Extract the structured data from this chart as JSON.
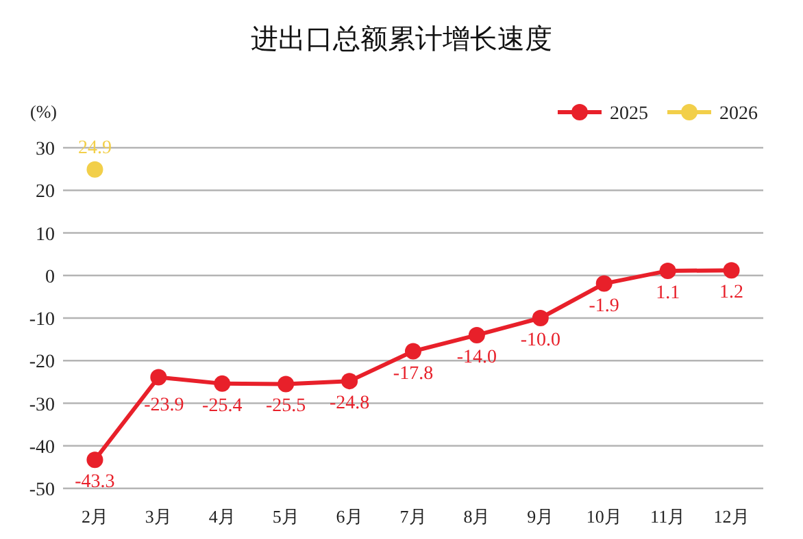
{
  "chart_data": {
    "type": "line",
    "title": "进出口总额累计增长速度",
    "ylabel": "(%)",
    "categories": [
      "2月",
      "3月",
      "4月",
      "5月",
      "6月",
      "7月",
      "8月",
      "9月",
      "10月",
      "11月",
      "12月"
    ],
    "series": [
      {
        "name": "2025",
        "color": "#e8202a",
        "values": [
          -43.3,
          -23.9,
          -25.4,
          -25.5,
          -24.8,
          -17.8,
          -14.0,
          -10.0,
          -1.9,
          1.1,
          1.2
        ],
        "value_labels": [
          "-43.3",
          "-23.9",
          "-25.4",
          "-25.5",
          "-24.8",
          "-17.8",
          "-14.0",
          "-10.0",
          "-1.9",
          "1.1",
          "1.2"
        ]
      },
      {
        "name": "2026",
        "color": "#f2cf4a",
        "values": [
          24.9,
          null,
          null,
          null,
          null,
          null,
          null,
          null,
          null,
          null,
          null
        ],
        "value_labels": [
          "24.9",
          null,
          null,
          null,
          null,
          null,
          null,
          null,
          null,
          null,
          null
        ]
      }
    ],
    "ylim": [
      -50,
      30
    ],
    "yticks": [
      {
        "value": -50,
        "label": "-50"
      },
      {
        "value": -40,
        "label": "-40"
      },
      {
        "value": -30,
        "label": "-30"
      },
      {
        "value": -20,
        "label": "-20"
      },
      {
        "value": -10,
        "label": "-10"
      },
      0,
      10,
      20,
      30
    ],
    "grid": "y",
    "legend": "top right",
    "marker": "circle",
    "line_style": "solid"
  }
}
